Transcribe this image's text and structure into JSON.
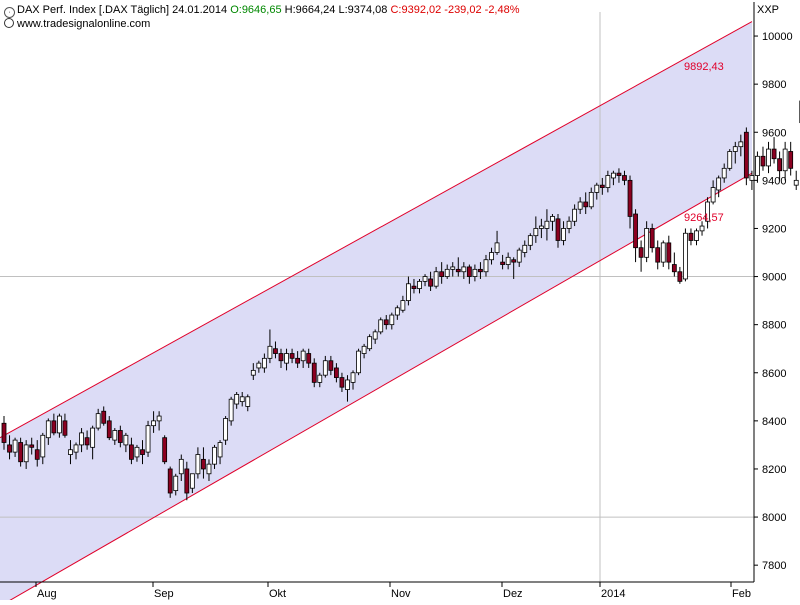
{
  "header": {
    "instrument": "DAX Perf. Index [.DAX  Täglich] 24.01.2014",
    "open_text": "O:9646,65",
    "high_text": "H:9664,24",
    "low_text": "L:9374,08",
    "close_text": "C:9392,02 -239,02 -2,48%",
    "source": "www.tradesignalonline.com",
    "currency": "XXP"
  },
  "colors": {
    "up_candle": "#ffffff",
    "down_candle": "#8b0020",
    "channel_line": "#e0002a",
    "channel_fill": "#dcdcf6",
    "open_text": "#008800",
    "close_text": "#dd0000",
    "grid": "#c0c0c0"
  },
  "chart_data": {
    "type": "candlestick",
    "x_tick_labels": [
      "Aug",
      "Sep",
      "Okt",
      "Nov",
      "Dez",
      "2014",
      "Feb"
    ],
    "y_ticks": [
      7800,
      8000,
      8200,
      8400,
      8600,
      8800,
      9000,
      9200,
      9400,
      9600,
      9800,
      10000
    ],
    "y_range": [
      7730,
      10100
    ],
    "channel": {
      "upper": {
        "start": 8330,
        "end": 10060
      },
      "lower": {
        "start": 7630,
        "end": 9430
      },
      "upper_label": "9892,43",
      "lower_label": "9264,57"
    },
    "candles": [
      [
        8390,
        8420,
        8280,
        8310
      ],
      [
        8300,
        8340,
        8240,
        8270
      ],
      [
        8270,
        8330,
        8250,
        8320
      ],
      [
        8310,
        8330,
        8210,
        8230
      ],
      [
        8230,
        8320,
        8200,
        8300
      ],
      [
        8300,
        8330,
        8260,
        8290
      ],
      [
        8280,
        8320,
        8210,
        8240
      ],
      [
        8250,
        8350,
        8220,
        8340
      ],
      [
        8330,
        8410,
        8300,
        8400
      ],
      [
        8400,
        8430,
        8340,
        8350
      ],
      [
        8350,
        8430,
        8330,
        8420
      ],
      [
        8400,
        8430,
        8330,
        8340
      ],
      [
        8260,
        8320,
        8220,
        8280
      ],
      [
        8270,
        8310,
        8240,
        8300
      ],
      [
        8300,
        8370,
        8270,
        8350
      ],
      [
        8330,
        8360,
        8280,
        8300
      ],
      [
        8290,
        8380,
        8240,
        8370
      ],
      [
        8370,
        8450,
        8360,
        8430
      ],
      [
        8440,
        8460,
        8380,
        8390
      ],
      [
        8400,
        8420,
        8320,
        8330
      ],
      [
        8320,
        8370,
        8300,
        8360
      ],
      [
        8360,
        8380,
        8290,
        8310
      ],
      [
        8300,
        8350,
        8270,
        8340
      ],
      [
        8300,
        8330,
        8220,
        8240
      ],
      [
        8250,
        8300,
        8230,
        8290
      ],
      [
        8280,
        8320,
        8220,
        8260
      ],
      [
        8270,
        8400,
        8250,
        8380
      ],
      [
        8380,
        8440,
        8350,
        8400
      ],
      [
        8400,
        8440,
        8360,
        8420
      ],
      [
        8330,
        8340,
        8220,
        8230
      ],
      [
        8200,
        8210,
        8080,
        8100
      ],
      [
        8110,
        8180,
        8090,
        8170
      ],
      [
        8180,
        8260,
        8150,
        8240
      ],
      [
        8200,
        8230,
        8070,
        8100
      ],
      [
        8120,
        8180,
        8100,
        8180
      ],
      [
        8180,
        8290,
        8160,
        8260
      ],
      [
        8240,
        8290,
        8160,
        8200
      ],
      [
        8180,
        8240,
        8150,
        8220
      ],
      [
        8220,
        8300,
        8200,
        8290
      ],
      [
        8250,
        8320,
        8220,
        8310
      ],
      [
        8320,
        8420,
        8300,
        8410
      ],
      [
        8400,
        8500,
        8380,
        8490
      ],
      [
        8470,
        8520,
        8450,
        8510
      ],
      [
        8480,
        8520,
        8460,
        8500
      ],
      [
        8460,
        8510,
        8440,
        8500
      ],
      [
        8590,
        8640,
        8570,
        8610
      ],
      [
        8620,
        8650,
        8600,
        8640
      ],
      [
        8620,
        8680,
        8600,
        8660
      ],
      [
        8660,
        8780,
        8640,
        8710
      ],
      [
        8700,
        8730,
        8660,
        8680
      ],
      [
        8680,
        8700,
        8620,
        8650
      ],
      [
        8640,
        8700,
        8610,
        8680
      ],
      [
        8680,
        8700,
        8640,
        8660
      ],
      [
        8660,
        8690,
        8620,
        8640
      ],
      [
        8650,
        8700,
        8620,
        8690
      ],
      [
        8680,
        8700,
        8620,
        8640
      ],
      [
        8640,
        8660,
        8540,
        8560
      ],
      [
        8560,
        8600,
        8540,
        8590
      ],
      [
        8590,
        8670,
        8580,
        8650
      ],
      [
        8650,
        8670,
        8590,
        8610
      ],
      [
        8620,
        8640,
        8560,
        8580
      ],
      [
        8580,
        8600,
        8520,
        8540
      ],
      [
        8530,
        8590,
        8480,
        8570
      ],
      [
        8560,
        8610,
        8530,
        8600
      ],
      [
        8600,
        8700,
        8590,
        8690
      ],
      [
        8680,
        8720,
        8660,
        8710
      ],
      [
        8700,
        8760,
        8690,
        8750
      ],
      [
        8740,
        8780,
        8720,
        8770
      ],
      [
        8770,
        8830,
        8760,
        8820
      ],
      [
        8820,
        8840,
        8780,
        8800
      ],
      [
        8800,
        8850,
        8780,
        8840
      ],
      [
        8840,
        8880,
        8820,
        8870
      ],
      [
        8860,
        8920,
        8850,
        8900
      ],
      [
        8900,
        9000,
        8880,
        8970
      ],
      [
        8960,
        8990,
        8930,
        8950
      ],
      [
        8950,
        8990,
        8930,
        8980
      ],
      [
        8980,
        9010,
        8960,
        9000
      ],
      [
        8990,
        9020,
        8940,
        8960
      ],
      [
        8960,
        9040,
        8950,
        9020
      ],
      [
        9020,
        9060,
        8970,
        9000
      ],
      [
        9000,
        9050,
        8990,
        9030
      ],
      [
        9030,
        9060,
        9000,
        9040
      ],
      [
        9030,
        9080,
        9000,
        9020
      ],
      [
        9020,
        9060,
        8990,
        9040
      ],
      [
        9040,
        9050,
        8970,
        9000
      ],
      [
        9000,
        9050,
        8980,
        9030
      ],
      [
        9030,
        9060,
        8990,
        9020
      ],
      [
        9020,
        9090,
        9000,
        9070
      ],
      [
        9070,
        9120,
        9050,
        9100
      ],
      [
        9100,
        9190,
        9090,
        9140
      ],
      [
        9060,
        9090,
        9030,
        9050
      ],
      [
        9050,
        9100,
        9030,
        9080
      ],
      [
        9070,
        9080,
        8990,
        9060
      ],
      [
        9060,
        9120,
        9040,
        9110
      ],
      [
        9100,
        9150,
        9080,
        9130
      ],
      [
        9130,
        9180,
        9110,
        9170
      ],
      [
        9170,
        9250,
        9140,
        9200
      ],
      [
        9200,
        9240,
        9160,
        9210
      ],
      [
        9200,
        9280,
        9150,
        9230
      ],
      [
        9230,
        9260,
        9190,
        9250
      ],
      [
        9240,
        9260,
        9120,
        9150
      ],
      [
        9150,
        9230,
        9130,
        9200
      ],
      [
        9200,
        9250,
        9180,
        9230
      ],
      [
        9230,
        9300,
        9210,
        9280
      ],
      [
        9280,
        9330,
        9260,
        9310
      ],
      [
        9310,
        9350,
        9260,
        9290
      ],
      [
        9290,
        9370,
        9280,
        9350
      ],
      [
        9350,
        9390,
        9320,
        9380
      ],
      [
        9380,
        9410,
        9340,
        9370
      ],
      [
        9370,
        9440,
        9350,
        9420
      ],
      [
        9410,
        9440,
        9380,
        9430
      ],
      [
        9430,
        9450,
        9390,
        9420
      ],
      [
        9420,
        9440,
        9380,
        9400
      ],
      [
        9400,
        9420,
        9200,
        9250
      ],
      [
        9260,
        9280,
        9060,
        9120
      ],
      [
        9120,
        9150,
        9020,
        9080
      ],
      [
        9080,
        9230,
        9060,
        9200
      ],
      [
        9200,
        9220,
        9100,
        9120
      ],
      [
        9120,
        9150,
        9030,
        9060
      ],
      [
        9060,
        9150,
        9040,
        9140
      ],
      [
        9140,
        9170,
        9030,
        9060
      ],
      [
        9050,
        9100,
        9000,
        9020
      ],
      [
        9020,
        9040,
        8970,
        8980
      ],
      [
        8990,
        9200,
        8980,
        9180
      ],
      [
        9180,
        9200,
        9130,
        9150
      ],
      [
        9150,
        9200,
        9130,
        9190
      ],
      [
        9190,
        9230,
        9170,
        9210
      ],
      [
        9230,
        9330,
        9200,
        9310
      ],
      [
        9310,
        9400,
        9300,
        9370
      ],
      [
        9360,
        9420,
        9330,
        9410
      ],
      [
        9410,
        9470,
        9390,
        9450
      ],
      [
        9450,
        9530,
        9440,
        9520
      ],
      [
        9520,
        9560,
        9470,
        9540
      ],
      [
        9540,
        9590,
        9500,
        9560
      ],
      [
        9600,
        9620,
        9380,
        9410
      ],
      [
        9400,
        9440,
        9360,
        9420
      ],
      [
        9420,
        9520,
        9390,
        9500
      ],
      [
        9500,
        9540,
        9440,
        9460
      ],
      [
        9460,
        9560,
        9430,
        9530
      ],
      [
        9530,
        9580,
        9470,
        9490
      ],
      [
        9490,
        9520,
        9400,
        9440
      ],
      [
        9440,
        9560,
        9400,
        9530
      ],
      [
        9520,
        9560,
        9420,
        9450
      ],
      [
        9380,
        9440,
        9360,
        9400
      ],
      [
        9640,
        9770,
        9620,
        9730
      ],
      [
        9730,
        9760,
        9680,
        9710
      ],
      [
        9710,
        9770,
        9690,
        9740
      ],
      [
        9740,
        9780,
        9700,
        9730
      ],
      [
        9730,
        9780,
        9670,
        9720
      ],
      [
        9720,
        9760,
        9680,
        9740
      ],
      [
        9740,
        9800,
        9720,
        9750
      ],
      [
        9760,
        9790,
        9680,
        9690
      ],
      [
        9690,
        9730,
        9620,
        9640
      ],
      [
        9646.65,
        9664.24,
        9374.08,
        9392.02
      ]
    ]
  }
}
